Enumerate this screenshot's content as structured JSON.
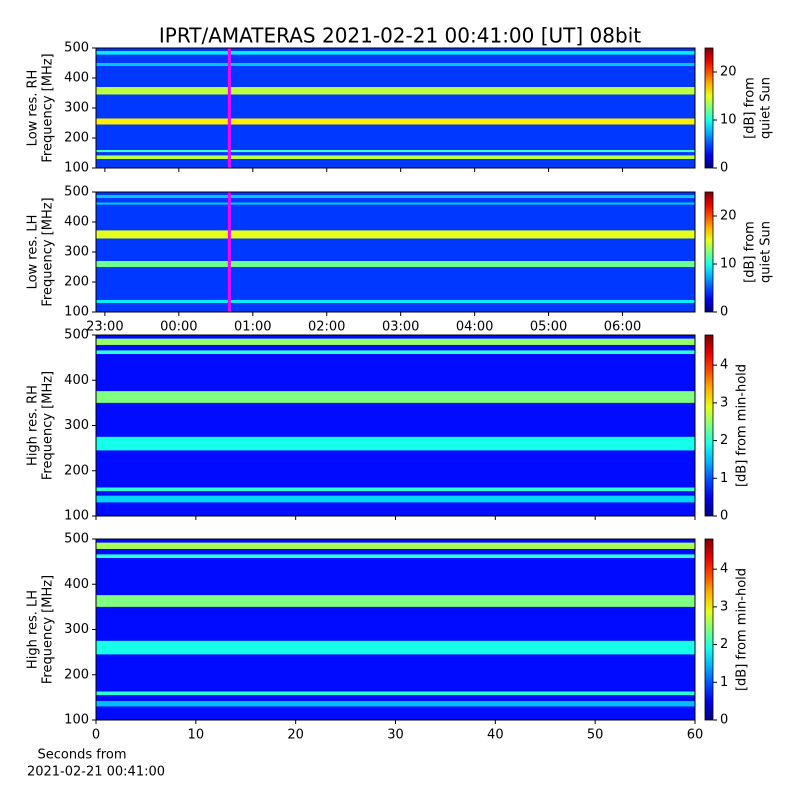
{
  "title": "IPRT/AMATERAS 2021-02-21 00:41:00 [UT]   08bit",
  "chart_data": [
    {
      "type": "spectrogram",
      "ylabel": [
        "Low res. RH",
        "Frequency [MHz]"
      ],
      "xlim": [
        22.88,
        30.98
      ],
      "xticks": [
        23,
        24,
        25,
        26,
        27,
        28,
        29,
        30
      ],
      "xticklabels": false,
      "ylim": [
        100,
        500
      ],
      "yticks": [
        100,
        200,
        300,
        400,
        500
      ],
      "clim": [
        0,
        25
      ],
      "cticks": [
        0,
        10,
        20
      ],
      "clabel": [
        "[dB] from",
        "quiet Sun"
      ],
      "background": 4.5,
      "marker": 24.683,
      "marker_color": "#ff00ff",
      "bands": [
        {
          "from": 130,
          "to": 142,
          "value": 14
        },
        {
          "from": 153,
          "to": 160,
          "value": 11
        },
        {
          "from": 245,
          "to": 265,
          "value": 16
        },
        {
          "from": 345,
          "to": 370,
          "value": 14
        },
        {
          "from": 440,
          "to": 450,
          "value": 8
        },
        {
          "from": 478,
          "to": 490,
          "value": 9
        }
      ]
    },
    {
      "type": "spectrogram",
      "ylabel": [
        "Low res. LH",
        "Frequency [MHz]"
      ],
      "xlim": [
        22.88,
        30.98
      ],
      "xticks": [
        {
          "value": 23,
          "label": "23:00"
        },
        {
          "value": 24,
          "label": "00:00"
        },
        {
          "value": 25,
          "label": "01:00"
        },
        {
          "value": 26,
          "label": "02:00"
        },
        {
          "value": 27,
          "label": "03:00"
        },
        {
          "value": 28,
          "label": "04:00"
        },
        {
          "value": 29,
          "label": "05:00"
        },
        {
          "value": 30,
          "label": "06:00"
        }
      ],
      "xticklabels": true,
      "ylim": [
        100,
        500
      ],
      "yticks": [
        100,
        200,
        300,
        400,
        500
      ],
      "clim": [
        0,
        25
      ],
      "cticks": [
        0,
        10,
        20
      ],
      "clabel": [
        "[dB] from",
        "quiet Sun"
      ],
      "background": 4.5,
      "marker": 24.683,
      "marker_color": "#ff00ff",
      "bands": [
        {
          "from": 130,
          "to": 140,
          "value": 9
        },
        {
          "from": 250,
          "to": 270,
          "value": 12
        },
        {
          "from": 345,
          "to": 372,
          "value": 15
        },
        {
          "from": 458,
          "to": 465,
          "value": 8
        },
        {
          "from": 480,
          "to": 490,
          "value": 8
        }
      ]
    },
    {
      "type": "spectrogram",
      "ylabel": [
        "High res. RH",
        "Frequency [MHz]"
      ],
      "xlim": [
        0,
        60
      ],
      "xticks": [
        0,
        10,
        20,
        30,
        40,
        50,
        60
      ],
      "xticklabels": false,
      "ylim": [
        100,
        500
      ],
      "yticks": [
        100,
        200,
        300,
        400,
        500
      ],
      "clim": [
        0,
        4.8
      ],
      "cticks": [
        0,
        1,
        2,
        3,
        4
      ],
      "clabel": [
        "[dB] from min-hold"
      ],
      "background": 0.65,
      "bands": [
        {
          "from": 130,
          "to": 145,
          "value": 1.6
        },
        {
          "from": 155,
          "to": 163,
          "value": 2
        },
        {
          "from": 245,
          "to": 275,
          "value": 1.9
        },
        {
          "from": 350,
          "to": 376,
          "value": 2.4
        },
        {
          "from": 458,
          "to": 466,
          "value": 2
        },
        {
          "from": 478,
          "to": 492,
          "value": 2.5
        }
      ]
    },
    {
      "type": "spectrogram",
      "ylabel": [
        "High res. LH",
        "Frequency [MHz]"
      ],
      "xlim": [
        0,
        60
      ],
      "xticks": [
        0,
        10,
        20,
        30,
        40,
        50,
        60
      ],
      "xticklabels": true,
      "xlabel": [
        "Seconds from",
        "2021-02-21 00:41:00"
      ],
      "ylim": [
        100,
        500
      ],
      "yticks": [
        100,
        200,
        300,
        400,
        500
      ],
      "clim": [
        0,
        4.8
      ],
      "cticks": [
        0,
        1,
        2,
        3,
        4
      ],
      "clabel": [
        "[dB] from min-hold"
      ],
      "background": 0.65,
      "bands": [
        {
          "from": 130,
          "to": 142,
          "value": 1.5
        },
        {
          "from": 155,
          "to": 163,
          "value": 2
        },
        {
          "from": 245,
          "to": 275,
          "value": 1.9
        },
        {
          "from": 350,
          "to": 376,
          "value": 2.4
        },
        {
          "from": 458,
          "to": 466,
          "value": 2
        },
        {
          "from": 478,
          "to": 492,
          "value": 2.6
        }
      ]
    }
  ]
}
